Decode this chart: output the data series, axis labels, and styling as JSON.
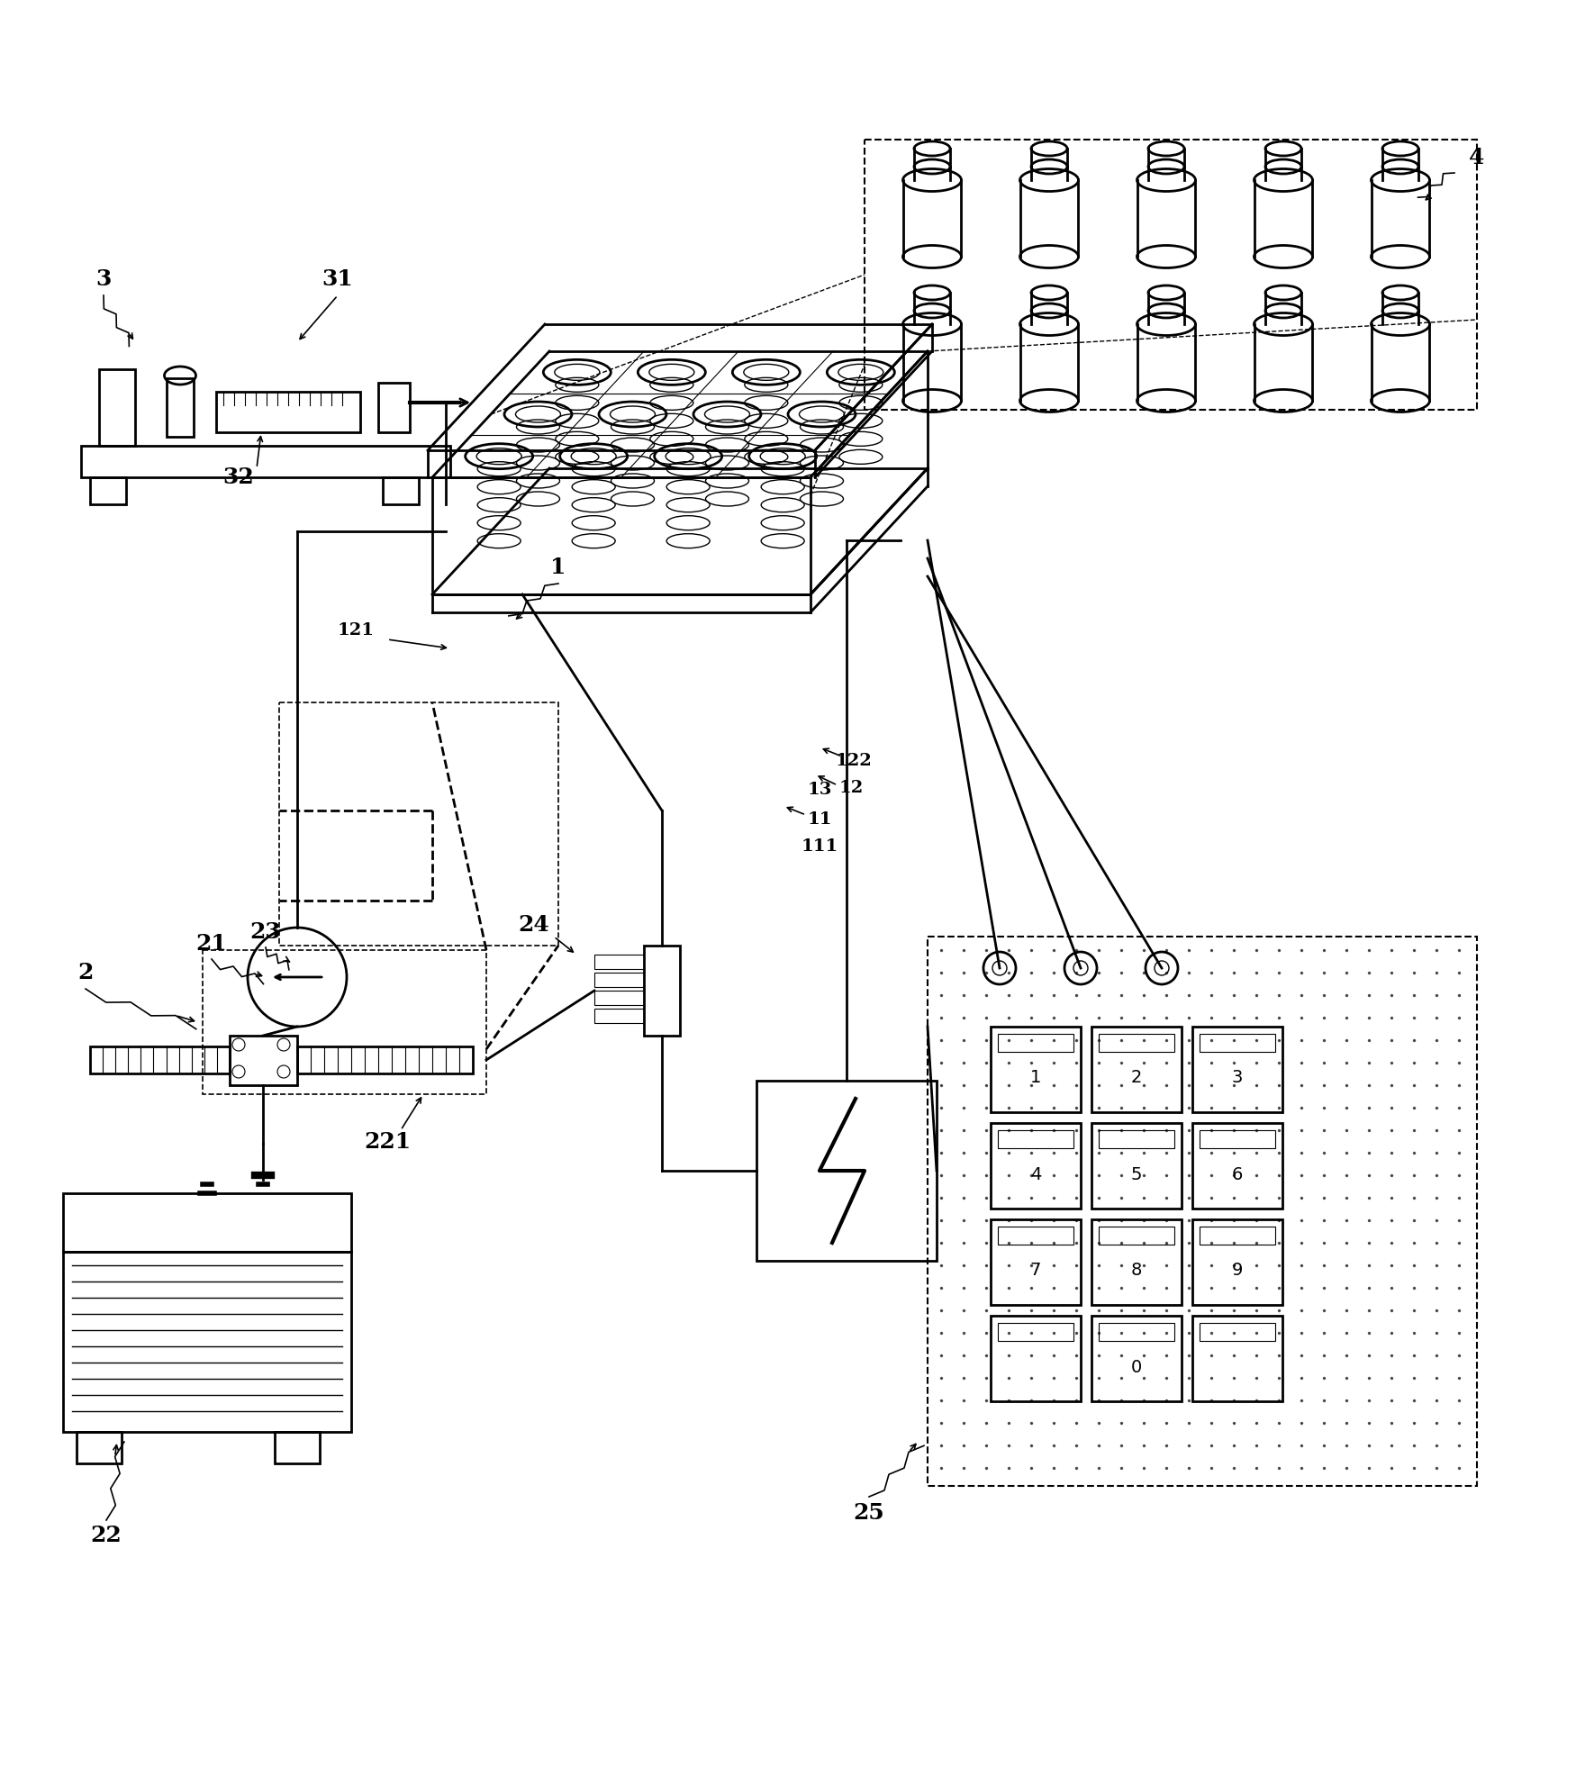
{
  "bg_color": "#ffffff",
  "line_color": "#000000",
  "fig_width": 17.6,
  "fig_height": 19.71,
  "dpi": 100,
  "label_fs": 18,
  "small_label_fs": 14
}
